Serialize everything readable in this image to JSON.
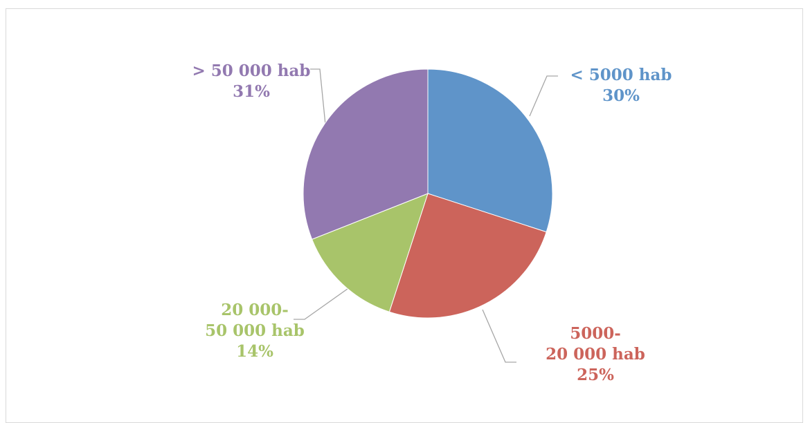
{
  "chart_data": {
    "type": "pie",
    "categories": [
      "< 5000 hab",
      "5000-20 000 hab",
      "20 000-50 000 hab",
      "> 50 000 hab"
    ],
    "values": [
      30,
      25,
      14,
      31
    ],
    "value_labels": [
      "30%",
      "25%",
      "14%",
      "31%"
    ],
    "colors": [
      "#5f94c9",
      "#cc645b",
      "#a8c46a",
      "#9279b0"
    ]
  }
}
